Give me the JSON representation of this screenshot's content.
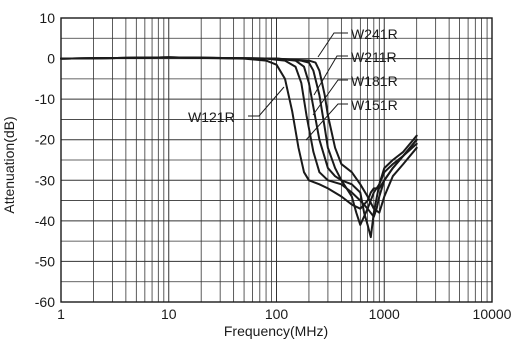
{
  "chart_data": {
    "type": "line",
    "xlabel": "Frequency(MHz)",
    "ylabel": "Attenuation(dB)",
    "x_scale": "log",
    "xlim": [
      1,
      10000
    ],
    "ylim": [
      -60,
      10
    ],
    "grid": true,
    "x_ticks": [
      "1",
      "10",
      "100",
      "1000",
      "10000"
    ],
    "y_ticks": [
      "10",
      "0",
      "-10",
      "-20",
      "-30",
      "-40",
      "-50",
      "-60"
    ],
    "series": [
      {
        "name": "W121R",
        "x": [
          1,
          10,
          50,
          80,
          100,
          120,
          140,
          160,
          180,
          200,
          250,
          300,
          400,
          500,
          600,
          700,
          750,
          800,
          900,
          1000,
          1200,
          1500,
          2000
        ],
        "y": [
          0,
          0.3,
          0,
          -0.5,
          -1.5,
          -5,
          -13,
          -22,
          -28,
          -30,
          -31,
          -32,
          -34,
          -36,
          -37,
          -35,
          -33,
          -32,
          -32,
          -30,
          -27,
          -24,
          -20
        ]
      },
      {
        "name": "W151R",
        "x": [
          1,
          10,
          80,
          120,
          150,
          170,
          190,
          220,
          250,
          300,
          400,
          500,
          600,
          700,
          800,
          850,
          900,
          1000,
          1200,
          1500,
          2000
        ],
        "y": [
          0,
          0.3,
          0,
          -0.5,
          -2,
          -6,
          -14,
          -23,
          -28,
          -30,
          -31,
          -33,
          -35,
          -37,
          -39,
          -37,
          -34,
          -30,
          -27,
          -24,
          -21
        ]
      },
      {
        "name": "W181R",
        "x": [
          1,
          10,
          100,
          150,
          180,
          200,
          220,
          250,
          300,
          350,
          400,
          500,
          550,
          600,
          700,
          800,
          900,
          1000,
          1200,
          1500,
          2000
        ],
        "y": [
          0,
          0.3,
          0,
          -0.5,
          -2,
          -6,
          -12,
          -20,
          -27,
          -29,
          -30,
          -34,
          -38,
          -41,
          -37,
          -33,
          -31,
          -28,
          -26,
          -24,
          -20
        ]
      },
      {
        "name": "W211R",
        "x": [
          1,
          10,
          100,
          170,
          200,
          220,
          250,
          280,
          300,
          350,
          400,
          500,
          600,
          650,
          700,
          750,
          800,
          900,
          1000,
          1200,
          1500,
          2000
        ],
        "y": [
          0,
          0.3,
          0,
          -0.5,
          -1,
          -3,
          -9,
          -17,
          -22,
          -27,
          -30,
          -31,
          -33,
          -38,
          -41,
          -44,
          -38,
          -31,
          -27,
          -25,
          -23,
          -19
        ]
      },
      {
        "name": "W241R",
        "x": [
          1,
          10,
          100,
          200,
          230,
          250,
          280,
          300,
          350,
          400,
          500,
          600,
          700,
          800,
          900,
          1000,
          1200,
          1500,
          2000
        ],
        "y": [
          0,
          0.3,
          0,
          -0.5,
          -1,
          -3,
          -9,
          -14,
          -22,
          -26,
          -28,
          -31,
          -34,
          -37,
          -38,
          -34,
          -29,
          -26,
          -22
        ]
      }
    ],
    "annotations": [
      "W241R",
      "W211R",
      "W181R",
      "W151R",
      "W121R"
    ]
  }
}
